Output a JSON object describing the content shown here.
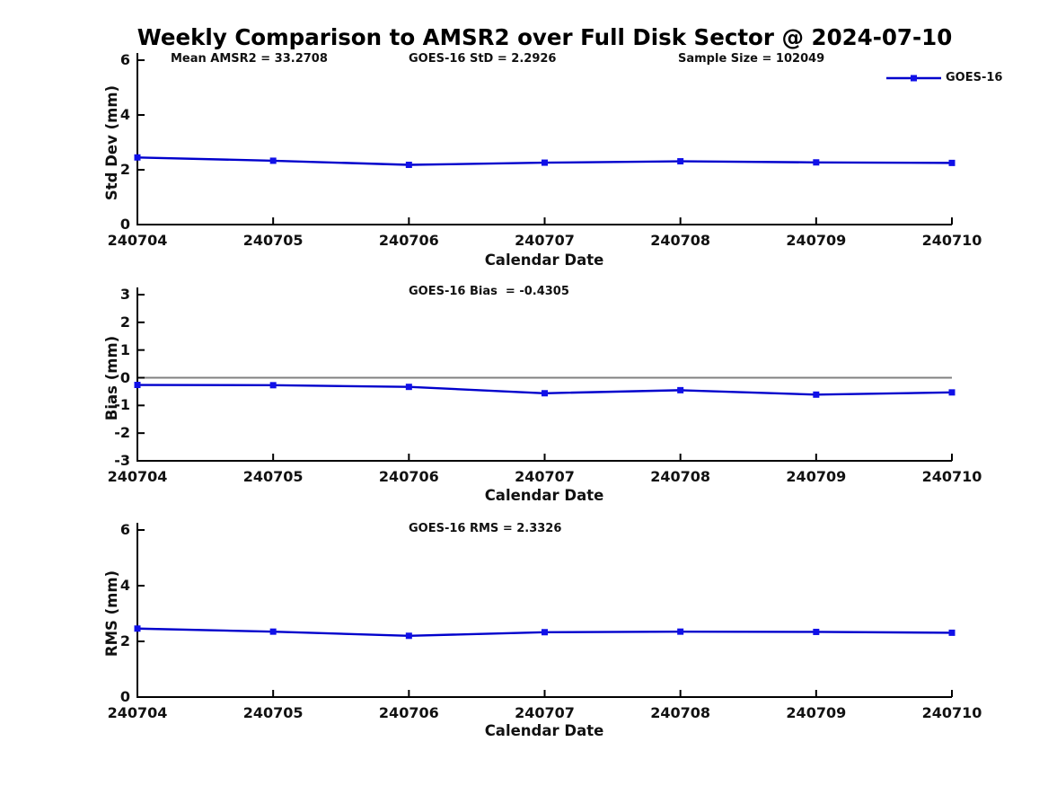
{
  "title": "Weekly Comparison to AMSR2 over Full Disk Sector @ 2024-07-10",
  "legend": {
    "label": "GOES-16",
    "position": "top-right"
  },
  "colors": {
    "line": "#0000cc",
    "marker": "#1010e8",
    "zero": "#808080",
    "axis": "#000000",
    "text": "#111111",
    "background": "#ffffff"
  },
  "stats": {
    "mean_amsr2": 33.2708,
    "goes16_std": 2.2926,
    "sample_size": 102049,
    "goes16_bias": -0.4305,
    "goes16_rms": 2.3326
  },
  "chart_data": [
    {
      "type": "line",
      "name": "std-dev-subplot",
      "annotations": [
        "Mean AMSR2 = 33.2708",
        "GOES-16 StD = 2.2926",
        "Sample Size = 102049"
      ],
      "ylabel": "Std Dev (mm)",
      "xlabel": "Calendar Date",
      "categories": [
        "240704",
        "240705",
        "240706",
        "240707",
        "240708",
        "240709",
        "240710"
      ],
      "yticks": [
        0,
        2,
        4,
        6
      ],
      "ylim": [
        0,
        6
      ],
      "grid": false,
      "zero_line": false,
      "series": [
        {
          "name": "GOES-16",
          "values": [
            2.45,
            2.33,
            2.18,
            2.26,
            2.31,
            2.27,
            2.25
          ]
        }
      ]
    },
    {
      "type": "line",
      "name": "bias-subplot",
      "annotations": [
        "GOES-16 Bias  = -0.4305"
      ],
      "ylabel": "Bias (mm)",
      "xlabel": "Calendar Date",
      "categories": [
        "240704",
        "240705",
        "240706",
        "240707",
        "240708",
        "240709",
        "240710"
      ],
      "yticks": [
        -3,
        -2,
        -1,
        0,
        1,
        2,
        3
      ],
      "ylim": [
        -3,
        3
      ],
      "grid": false,
      "zero_line": true,
      "series": [
        {
          "name": "GOES-16",
          "values": [
            -0.26,
            -0.27,
            -0.33,
            -0.56,
            -0.45,
            -0.61,
            -0.53
          ]
        }
      ]
    },
    {
      "type": "line",
      "name": "rms-subplot",
      "annotations": [
        "GOES-16 RMS = 2.3326"
      ],
      "ylabel": "RMS (mm)",
      "xlabel": "Calendar Date",
      "categories": [
        "240704",
        "240705",
        "240706",
        "240707",
        "240708",
        "240709",
        "240710"
      ],
      "yticks": [
        0,
        2,
        4,
        6
      ],
      "ylim": [
        0,
        6
      ],
      "grid": false,
      "zero_line": false,
      "series": [
        {
          "name": "GOES-16",
          "values": [
            2.46,
            2.35,
            2.2,
            2.33,
            2.35,
            2.34,
            2.31
          ]
        }
      ]
    }
  ]
}
